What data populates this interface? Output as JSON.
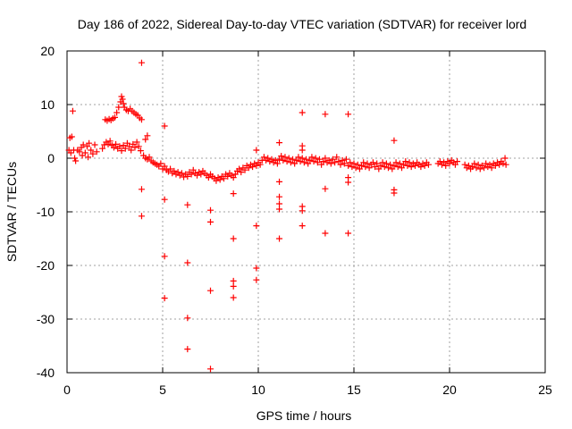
{
  "chart_data": {
    "type": "scatter",
    "title": "Day 186 of 2022, Sidereal Day-to-day VTEC variation (SDTVAR) for receiver lord",
    "xlabel": "GPS time / hours",
    "ylabel": "SDTVAR / TECUs",
    "xlim": [
      0,
      25
    ],
    "ylim": [
      -40,
      20
    ],
    "xticks": [
      0,
      5,
      10,
      15,
      20,
      25
    ],
    "yticks": [
      -40,
      -30,
      -20,
      -10,
      0,
      10,
      20
    ],
    "grid": true,
    "marker": "plus",
    "color": "#ff0000",
    "series": [
      {
        "name": "SDTVAR",
        "points": [
          [
            0.1,
            1.5
          ],
          [
            0.15,
            3.8
          ],
          [
            0.2,
            1.0
          ],
          [
            0.25,
            4.0
          ],
          [
            0.3,
            8.8
          ],
          [
            0.35,
            1.5
          ],
          [
            0.4,
            0.0
          ],
          [
            0.45,
            -0.5
          ],
          [
            0.55,
            1.5
          ],
          [
            0.65,
            1.2
          ],
          [
            0.75,
            2.0
          ],
          [
            0.8,
            0.5
          ],
          [
            0.85,
            2.5
          ],
          [
            0.95,
            1.0
          ],
          [
            1.05,
            2.2
          ],
          [
            1.1,
            0.2
          ],
          [
            1.15,
            2.8
          ],
          [
            1.25,
            1.5
          ],
          [
            1.35,
            0.8
          ],
          [
            1.45,
            2.5
          ],
          [
            1.55,
            1.2
          ],
          [
            1.85,
            1.8
          ],
          [
            1.95,
            2.5
          ],
          [
            2.05,
            3.0
          ],
          [
            2.15,
            2.6
          ],
          [
            2.25,
            3.2
          ],
          [
            2.35,
            2.4
          ],
          [
            2.45,
            2.0
          ],
          [
            2.55,
            2.6
          ],
          [
            2.65,
            1.8
          ],
          [
            2.75,
            2.2
          ],
          [
            2.85,
            1.4
          ],
          [
            2.95,
            2.4
          ],
          [
            3.05,
            1.8
          ],
          [
            3.15,
            2.8
          ],
          [
            3.25,
            2.2
          ],
          [
            3.35,
            1.5
          ],
          [
            3.45,
            2.6
          ],
          [
            3.55,
            2.0
          ],
          [
            3.65,
            3.0
          ],
          [
            3.75,
            2.2
          ],
          [
            3.85,
            1.4
          ],
          [
            2.0,
            7.2
          ],
          [
            2.1,
            7.0
          ],
          [
            2.2,
            7.3
          ],
          [
            2.3,
            7.1
          ],
          [
            2.4,
            7.4
          ],
          [
            2.5,
            7.6
          ],
          [
            2.6,
            8.5
          ],
          [
            2.7,
            9.5
          ],
          [
            2.8,
            10.5
          ],
          [
            2.85,
            11.5
          ],
          [
            2.9,
            11.0
          ],
          [
            2.95,
            10.2
          ],
          [
            3.0,
            9.5
          ],
          [
            3.1,
            9.0
          ],
          [
            3.2,
            8.8
          ],
          [
            3.3,
            9.2
          ],
          [
            3.4,
            8.8
          ],
          [
            3.5,
            8.5
          ],
          [
            3.6,
            8.2
          ],
          [
            3.7,
            8.0
          ],
          [
            3.8,
            7.5
          ],
          [
            3.9,
            7.2
          ],
          [
            3.9,
            17.8
          ],
          [
            3.9,
            -5.8
          ],
          [
            3.9,
            -10.8
          ],
          [
            4.1,
            3.5
          ],
          [
            4.2,
            4.2
          ],
          [
            4.0,
            0.5
          ],
          [
            4.1,
            0.0
          ],
          [
            4.2,
            -0.2
          ],
          [
            4.3,
            0.2
          ],
          [
            4.4,
            -0.5
          ],
          [
            4.5,
            -0.8
          ],
          [
            4.6,
            -1.0
          ],
          [
            4.7,
            -1.2
          ],
          [
            4.8,
            -1.5
          ],
          [
            4.9,
            -1.0
          ],
          [
            5.0,
            -2.0
          ],
          [
            5.1,
            -1.5
          ],
          [
            5.2,
            -2.2
          ],
          [
            5.3,
            -2.5
          ],
          [
            5.4,
            -2.0
          ],
          [
            5.5,
            -2.8
          ],
          [
            5.6,
            -2.4
          ],
          [
            5.7,
            -3.0
          ],
          [
            5.8,
            -2.6
          ],
          [
            5.9,
            -3.2
          ],
          [
            6.0,
            -2.8
          ],
          [
            6.1,
            -3.5
          ],
          [
            6.2,
            -3.0
          ],
          [
            6.3,
            -3.4
          ],
          [
            6.4,
            -2.6
          ],
          [
            6.5,
            -3.0
          ],
          [
            6.6,
            -2.2
          ],
          [
            6.7,
            -2.8
          ],
          [
            6.8,
            -3.2
          ],
          [
            6.9,
            -2.6
          ],
          [
            7.0,
            -3.0
          ],
          [
            7.1,
            -2.4
          ],
          [
            7.2,
            -2.8
          ],
          [
            7.3,
            -3.2
          ],
          [
            7.4,
            -3.6
          ],
          [
            7.5,
            -3.0
          ],
          [
            7.6,
            -3.4
          ],
          [
            7.7,
            -3.8
          ],
          [
            7.8,
            -4.2
          ],
          [
            7.9,
            -3.6
          ],
          [
            8.0,
            -4.0
          ],
          [
            8.1,
            -3.4
          ],
          [
            8.2,
            -3.8
          ],
          [
            8.3,
            -3.0
          ],
          [
            8.4,
            -3.4
          ],
          [
            8.5,
            -2.8
          ],
          [
            8.6,
            -3.2
          ],
          [
            8.7,
            -3.6
          ],
          [
            8.8,
            -3.0
          ],
          [
            8.9,
            -2.4
          ],
          [
            9.0,
            -2.0
          ],
          [
            9.1,
            -2.6
          ],
          [
            9.2,
            -1.8
          ],
          [
            9.3,
            -2.2
          ],
          [
            9.4,
            -1.4
          ],
          [
            9.5,
            -1.8
          ],
          [
            9.6,
            -1.2
          ],
          [
            9.7,
            -1.6
          ],
          [
            9.8,
            -1.0
          ],
          [
            9.9,
            -1.4
          ],
          [
            10.0,
            -0.8
          ],
          [
            10.1,
            -1.2
          ],
          [
            10.2,
            -0.4
          ],
          [
            10.3,
            0.2
          ],
          [
            10.4,
            -0.4
          ],
          [
            10.5,
            0.0
          ],
          [
            10.6,
            -0.6
          ],
          [
            10.7,
            -0.2
          ],
          [
            10.8,
            -0.8
          ],
          [
            10.9,
            -0.4
          ],
          [
            11.0,
            -1.0
          ],
          [
            11.1,
            -0.2
          ],
          [
            11.2,
            0.4
          ],
          [
            11.3,
            -0.4
          ],
          [
            11.4,
            0.2
          ],
          [
            11.5,
            -0.6
          ],
          [
            11.6,
            0.0
          ],
          [
            11.7,
            -0.8
          ],
          [
            11.8,
            -0.2
          ],
          [
            11.9,
            -1.0
          ],
          [
            12.0,
            -0.4
          ],
          [
            12.1,
            0.2
          ],
          [
            12.2,
            -0.6
          ],
          [
            12.3,
            0.0
          ],
          [
            12.4,
            -0.8
          ],
          [
            12.5,
            -0.2
          ],
          [
            12.6,
            -1.0
          ],
          [
            12.7,
            -0.4
          ],
          [
            12.8,
            0.2
          ],
          [
            12.9,
            -0.6
          ],
          [
            13.0,
            0.0
          ],
          [
            13.1,
            -0.8
          ],
          [
            13.2,
            -0.2
          ],
          [
            13.3,
            -1.2
          ],
          [
            13.4,
            -0.6
          ],
          [
            13.5,
            0.0
          ],
          [
            13.6,
            -0.8
          ],
          [
            13.7,
            -0.4
          ],
          [
            13.8,
            -1.0
          ],
          [
            13.9,
            -0.2
          ],
          [
            14.0,
            -0.8
          ],
          [
            14.1,
            0.2
          ],
          [
            14.2,
            -0.6
          ],
          [
            14.3,
            -1.2
          ],
          [
            14.4,
            -0.4
          ],
          [
            14.5,
            -1.0
          ],
          [
            14.6,
            -0.2
          ],
          [
            14.7,
            -1.4
          ],
          [
            14.8,
            -0.8
          ],
          [
            14.9,
            -1.6
          ],
          [
            15.0,
            -1.0
          ],
          [
            15.1,
            -1.8
          ],
          [
            15.2,
            -1.2
          ],
          [
            15.3,
            -2.0
          ],
          [
            15.4,
            -1.4
          ],
          [
            15.5,
            -0.8
          ],
          [
            15.6,
            -1.6
          ],
          [
            15.7,
            -1.0
          ],
          [
            15.8,
            -1.8
          ],
          [
            15.9,
            -1.2
          ],
          [
            16.0,
            -0.8
          ],
          [
            16.1,
            -1.6
          ],
          [
            16.2,
            -1.0
          ],
          [
            16.3,
            -2.0
          ],
          [
            16.4,
            -1.4
          ],
          [
            16.5,
            -0.8
          ],
          [
            16.6,
            -1.6
          ],
          [
            16.7,
            -1.0
          ],
          [
            16.8,
            -1.8
          ],
          [
            16.9,
            -1.2
          ],
          [
            17.0,
            -2.0
          ],
          [
            17.1,
            -1.4
          ],
          [
            17.2,
            -0.8
          ],
          [
            17.3,
            -1.6
          ],
          [
            17.4,
            -1.0
          ],
          [
            17.5,
            -1.8
          ],
          [
            17.6,
            -1.2
          ],
          [
            17.7,
            -0.6
          ],
          [
            17.8,
            -1.4
          ],
          [
            17.9,
            -0.8
          ],
          [
            18.0,
            -1.6
          ],
          [
            18.1,
            -1.0
          ],
          [
            18.2,
            -1.4
          ],
          [
            18.3,
            -0.8
          ],
          [
            18.4,
            -1.2
          ],
          [
            18.5,
            -1.6
          ],
          [
            18.6,
            -1.0
          ],
          [
            18.7,
            -1.4
          ],
          [
            18.8,
            -0.8
          ],
          [
            18.9,
            -1.2
          ],
          [
            19.4,
            -1.0
          ],
          [
            19.5,
            -0.6
          ],
          [
            19.6,
            -1.2
          ],
          [
            19.7,
            -0.8
          ],
          [
            19.8,
            -1.4
          ],
          [
            19.9,
            -0.6
          ],
          [
            20.0,
            -1.0
          ],
          [
            20.1,
            -0.4
          ],
          [
            20.2,
            -0.8
          ],
          [
            20.3,
            -1.2
          ],
          [
            20.4,
            -0.6
          ],
          [
            20.8,
            -1.2
          ],
          [
            20.9,
            -1.8
          ],
          [
            21.0,
            -1.4
          ],
          [
            21.1,
            -2.0
          ],
          [
            21.2,
            -1.6
          ],
          [
            21.3,
            -1.0
          ],
          [
            21.4,
            -1.8
          ],
          [
            21.5,
            -1.2
          ],
          [
            21.6,
            -2.0
          ],
          [
            21.7,
            -1.4
          ],
          [
            21.8,
            -1.8
          ],
          [
            21.9,
            -1.0
          ],
          [
            22.0,
            -1.6
          ],
          [
            22.1,
            -1.2
          ],
          [
            22.2,
            -1.8
          ],
          [
            22.3,
            -1.0
          ],
          [
            22.4,
            -1.4
          ],
          [
            22.5,
            -0.8
          ],
          [
            22.6,
            -1.2
          ],
          [
            22.7,
            -0.6
          ],
          [
            22.8,
            -1.0
          ],
          [
            22.9,
            0.0
          ],
          [
            22.95,
            -1.2
          ],
          [
            5.1,
            6.0
          ],
          [
            5.1,
            -7.7
          ],
          [
            5.1,
            -18.3
          ],
          [
            5.1,
            -26.1
          ],
          [
            6.3,
            -8.7
          ],
          [
            6.3,
            -19.5
          ],
          [
            6.3,
            -29.8
          ],
          [
            6.3,
            -35.6
          ],
          [
            7.5,
            -9.7
          ],
          [
            7.5,
            -11.9
          ],
          [
            7.5,
            -24.7
          ],
          [
            7.5,
            -39.3
          ],
          [
            8.7,
            -6.6
          ],
          [
            8.7,
            -15.0
          ],
          [
            8.7,
            -22.9
          ],
          [
            8.7,
            -23.9
          ],
          [
            8.7,
            -26.0
          ],
          [
            9.9,
            1.5
          ],
          [
            9.9,
            -12.6
          ],
          [
            9.9,
            -20.5
          ],
          [
            9.9,
            -22.7
          ],
          [
            11.1,
            2.9
          ],
          [
            11.1,
            -4.4
          ],
          [
            11.1,
            -7.2
          ],
          [
            11.1,
            -8.5
          ],
          [
            11.1,
            -9.5
          ],
          [
            11.1,
            -15.0
          ],
          [
            12.3,
            8.5
          ],
          [
            12.3,
            2.3
          ],
          [
            12.3,
            1.5
          ],
          [
            12.3,
            -9.0
          ],
          [
            12.3,
            -9.8
          ],
          [
            12.3,
            -12.6
          ],
          [
            13.5,
            8.2
          ],
          [
            13.5,
            -5.7
          ],
          [
            13.5,
            -14.0
          ],
          [
            14.7,
            8.2
          ],
          [
            14.7,
            -3.6
          ],
          [
            14.7,
            -4.5
          ],
          [
            14.7,
            -14.0
          ],
          [
            17.1,
            3.3
          ],
          [
            17.1,
            -5.9
          ],
          [
            17.1,
            -6.5
          ]
        ]
      }
    ]
  }
}
